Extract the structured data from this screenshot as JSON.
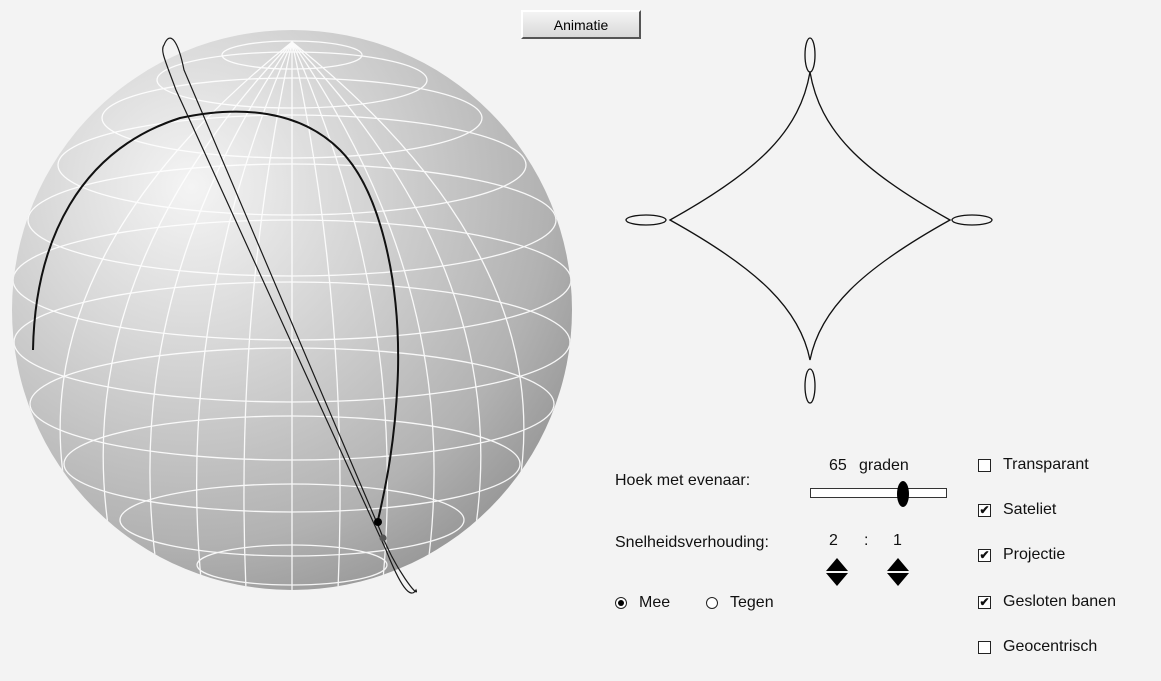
{
  "toolbar": {
    "animate_label": "Animatie"
  },
  "controls": {
    "angle_label": "Hoek met evenaar:",
    "angle_value": "65",
    "angle_unit": "graden",
    "angle_fraction": 0.72,
    "speed_label": "Snelheidsverhouding:",
    "speed_left": "2",
    "speed_sep": ":",
    "speed_right": "1",
    "direction_options": [
      {
        "label": "Mee",
        "selected": true
      },
      {
        "label": "Tegen",
        "selected": false
      }
    ]
  },
  "options": [
    {
      "label": "Transparant",
      "checked": false
    },
    {
      "label": "Sateliet",
      "checked": true
    },
    {
      "label": "Projectie",
      "checked": true
    },
    {
      "label": "Gesloten banen",
      "checked": true
    },
    {
      "label": "Geocentrisch",
      "checked": false
    }
  ],
  "colors": {
    "background": "#f3f3f3",
    "sphere_light": "#f2f2f2",
    "sphere_dark": "#9c9c9c",
    "grid": "#ffffff",
    "curve": "#000000"
  }
}
